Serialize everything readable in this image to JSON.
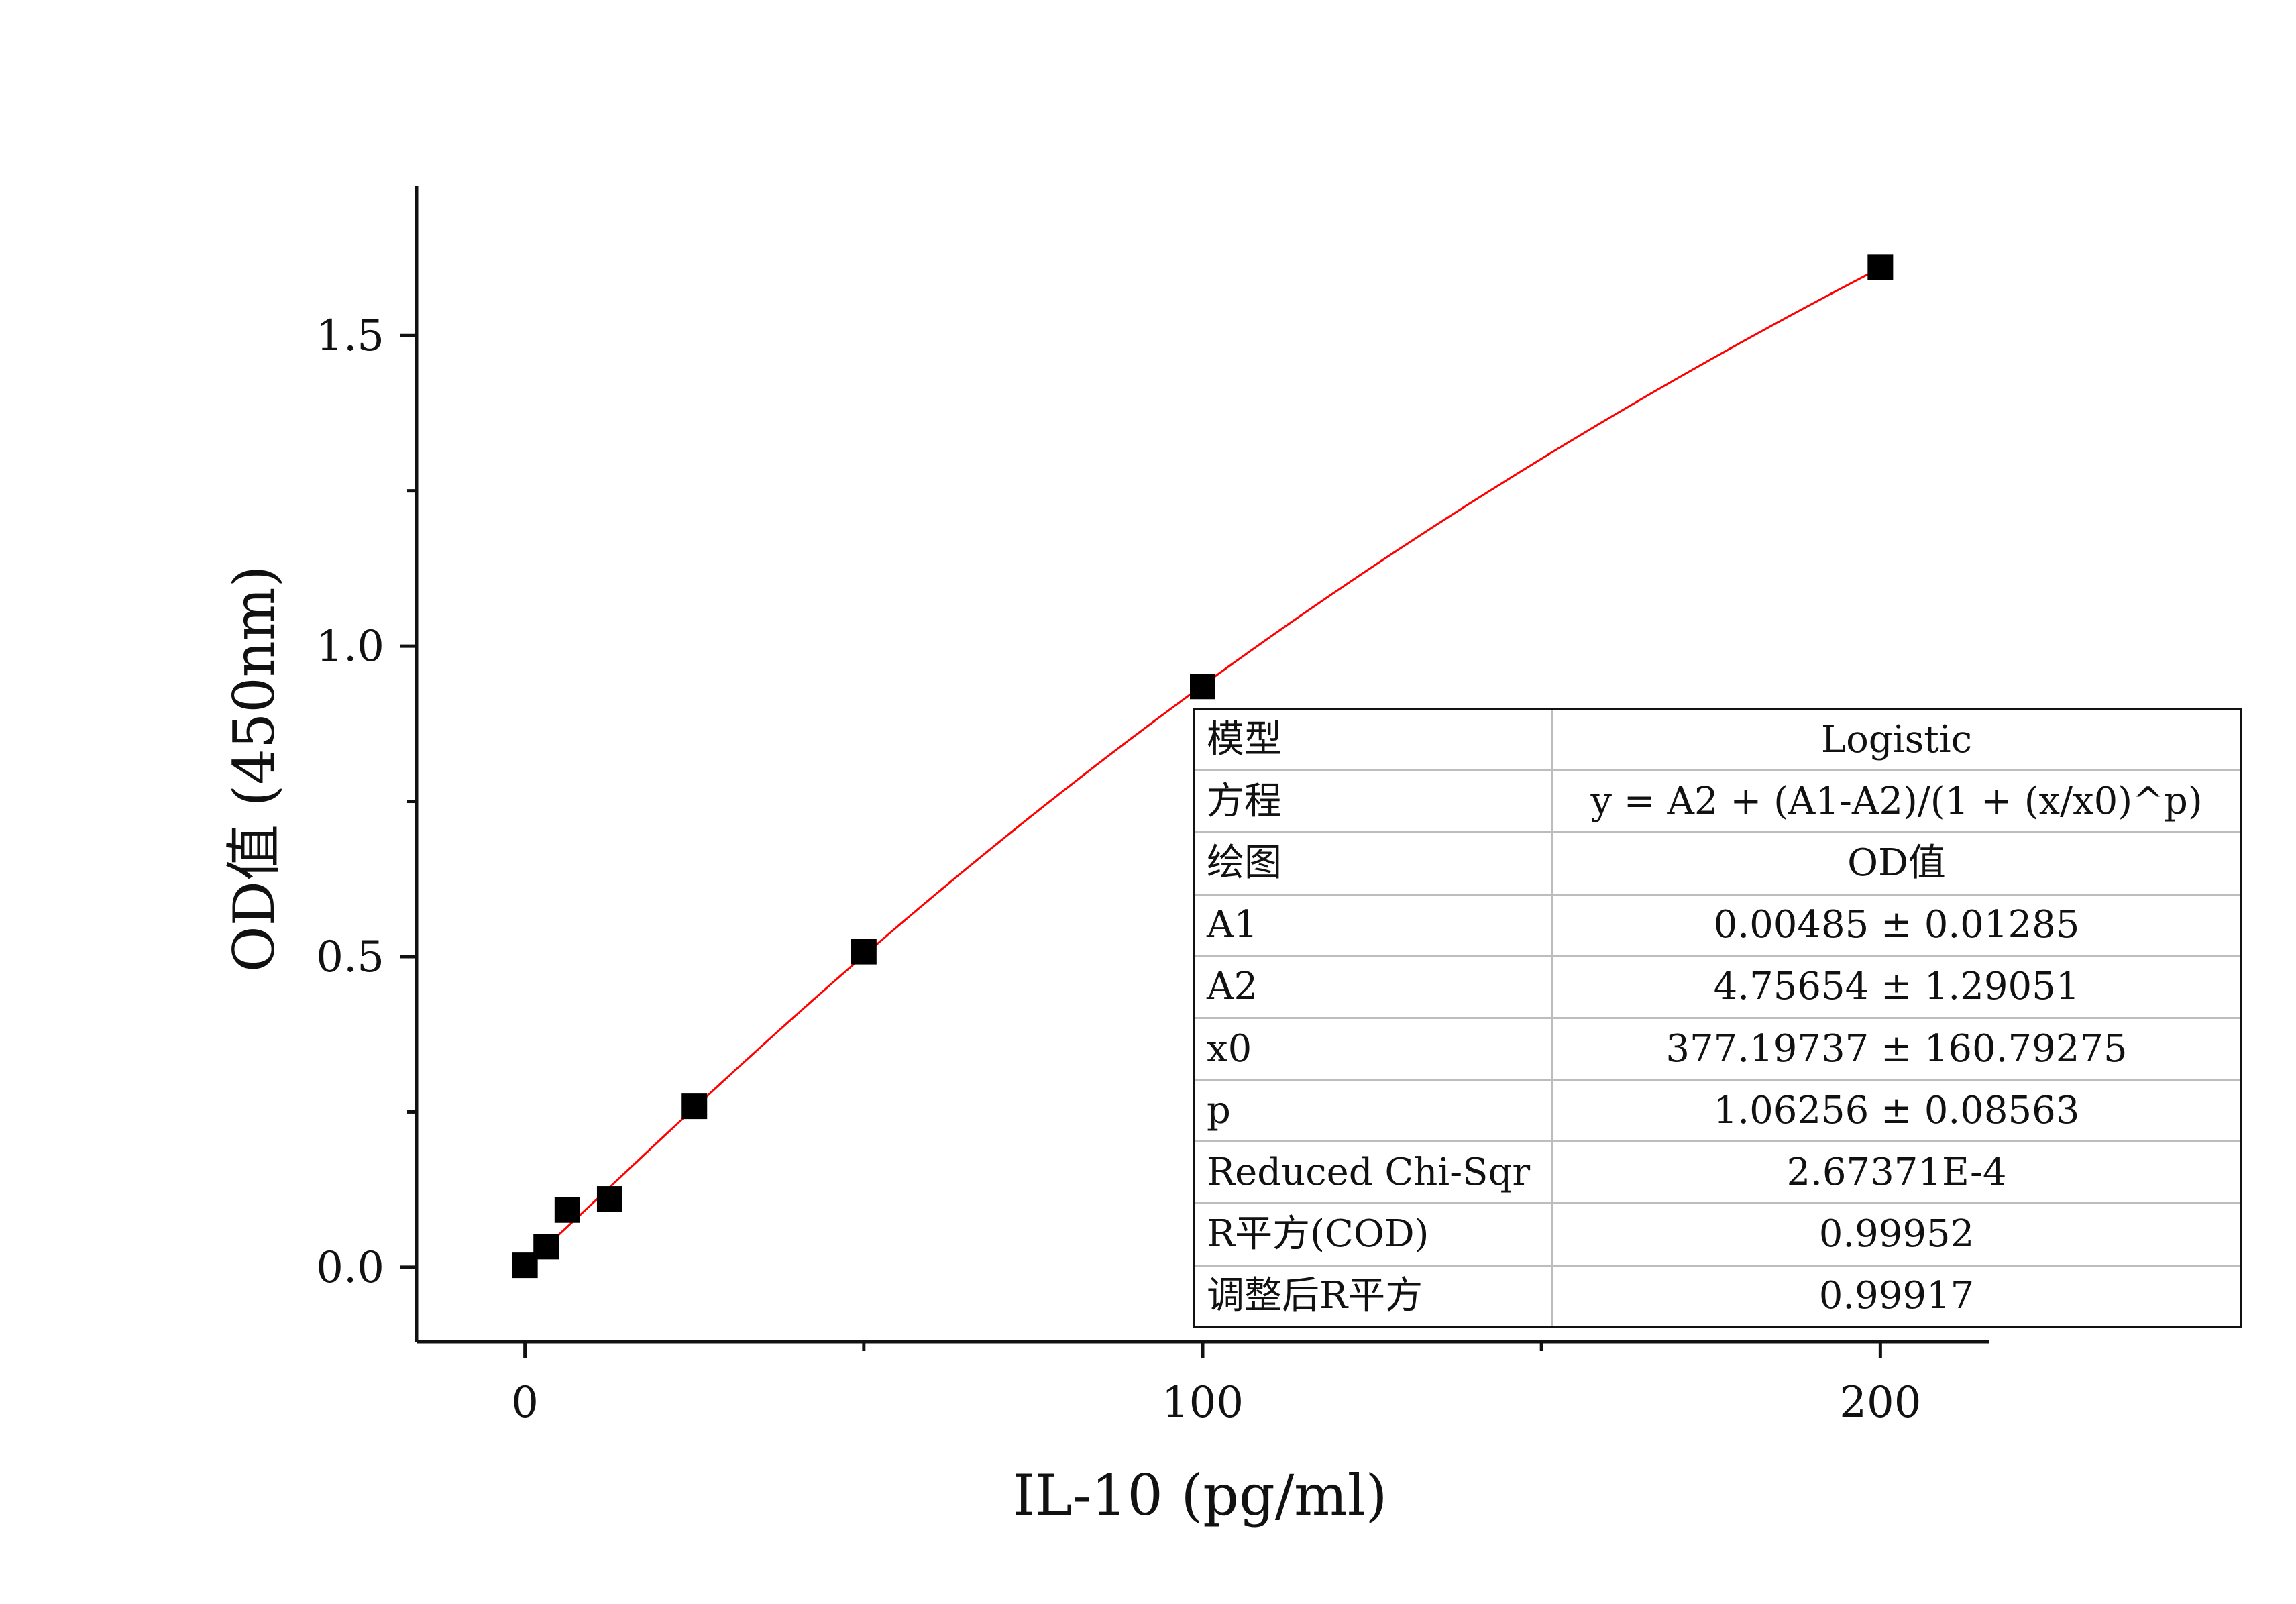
{
  "chart_data": {
    "type": "scatter",
    "xlabel": "IL-10 (pg/ml)",
    "ylabel": "OD值 (450nm)",
    "xlim": [
      -16,
      216
    ],
    "ylim": [
      -0.12,
      1.74
    ],
    "x_ticks": [
      0,
      100,
      200
    ],
    "x_minor_ticks": [
      50,
      150
    ],
    "y_ticks": [
      0.0,
      0.5,
      1.0,
      1.5
    ],
    "y_tick_labels": [
      "0.0",
      "0.5",
      "1.0",
      "1.5"
    ],
    "y_minor_ticks": [
      0.25,
      0.75,
      1.25
    ],
    "x_tick_labels": [
      "0",
      "100",
      "200"
    ],
    "grid": false,
    "points": [
      {
        "x": 0,
        "y": 0.003
      },
      {
        "x": 3.125,
        "y": 0.033
      },
      {
        "x": 6.25,
        "y": 0.092
      },
      {
        "x": 12.5,
        "y": 0.11
      },
      {
        "x": 25,
        "y": 0.259
      },
      {
        "x": 50,
        "y": 0.508
      },
      {
        "x": 100,
        "y": 0.935
      },
      {
        "x": 200,
        "y": 1.61
      }
    ],
    "marker_color": "#000000",
    "fit": {
      "model": "Logistic",
      "A1": 0.00485,
      "A2": 4.75654,
      "x0": 377.19737,
      "p": 1.06256,
      "x_range": [
        0,
        200
      ],
      "color": "#ff0000"
    }
  },
  "stats_table": {
    "rows": [
      {
        "label": "模型",
        "value": "Logistic"
      },
      {
        "label": "方程",
        "value": "y = A2 + (A1-A2)/(1 + (x/x0)^p)"
      },
      {
        "label": "绘图",
        "value": "OD值"
      },
      {
        "label": "A1",
        "value": "0.00485 ± 0.01285"
      },
      {
        "label": "A2",
        "value": "4.75654 ± 1.29051"
      },
      {
        "label": "x0",
        "value": "377.19737 ± 160.79275"
      },
      {
        "label": "p",
        "value": "1.06256 ± 0.08563"
      },
      {
        "label": "Reduced Chi-Sqr",
        "value": "2.67371E-4"
      },
      {
        "label": "R平方(COD)",
        "value": "0.99952"
      },
      {
        "label": "调整后R平方",
        "value": "0.99917"
      }
    ]
  }
}
